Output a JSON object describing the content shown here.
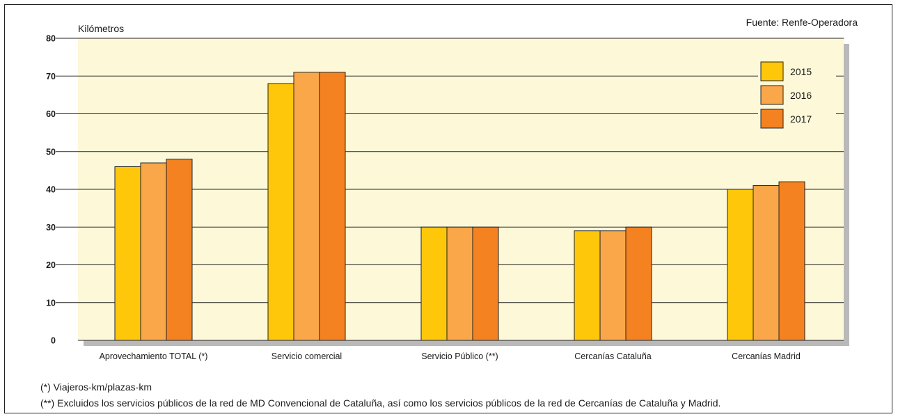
{
  "source": "Fuente: Renfe-Operadora",
  "footnotes": [
    "(*) Viajeros-km/plazas-km",
    "(**) Excluidos los servicios públicos de la red de MD Convencional de Cataluña, así como los servicios públicos de la red de Cercanías de Cataluña y Madrid."
  ],
  "colors": {
    "background": "#fdf8d8",
    "shadow": "#b9b9b9",
    "series": [
      "#fec70a",
      "#f9a749",
      "#f58220"
    ]
  },
  "chart_data": {
    "type": "bar",
    "title": "",
    "xlabel": "",
    "ylabel": "Kilómetros",
    "ylim": [
      0,
      80
    ],
    "yticks": [
      0,
      10,
      20,
      30,
      40,
      50,
      60,
      70,
      80
    ],
    "grid": true,
    "legend_position": "top-right",
    "categories": [
      "Aprovechamiento TOTAL (*)",
      "Servicio comercial",
      "Servicio Público (**)",
      "Cercanías Cataluña",
      "Cercanías Madrid"
    ],
    "series": [
      {
        "name": "2015",
        "values": [
          46,
          68,
          30,
          29,
          40
        ]
      },
      {
        "name": "2016",
        "values": [
          47,
          71,
          30,
          29,
          41
        ]
      },
      {
        "name": "2017",
        "values": [
          48,
          71,
          30,
          30,
          42
        ]
      }
    ]
  }
}
